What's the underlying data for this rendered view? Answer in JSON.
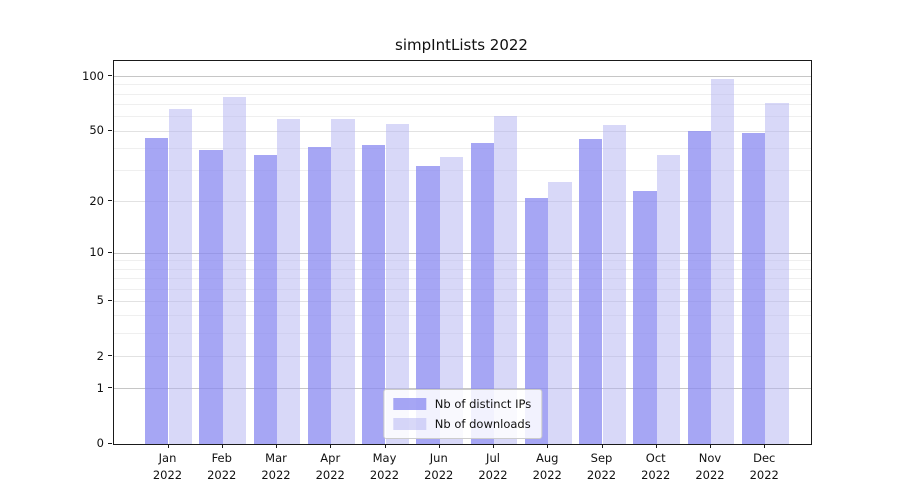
{
  "title": "simpIntLists 2022",
  "chart_data": {
    "type": "bar",
    "title": "simpIntLists 2022",
    "categories": [
      "Jan",
      "Feb",
      "Mar",
      "Apr",
      "May",
      "Jun",
      "Jul",
      "Aug",
      "Sep",
      "Oct",
      "Nov",
      "Dec"
    ],
    "category_year": "2022",
    "series": [
      {
        "name": "Nb of distinct IPs",
        "color": "rgba(136,136,240,0.75)",
        "values": [
          46,
          39,
          37,
          41,
          42,
          32,
          43,
          21,
          45,
          23,
          50,
          49
        ]
      },
      {
        "name": "Nb of downloads",
        "color": "rgba(177,177,242,0.5)",
        "values": [
          66,
          77,
          58,
          58,
          55,
          36,
          61,
          26,
          54,
          37,
          97,
          72
        ]
      }
    ],
    "yscale": "log1p",
    "ylim": [
      0,
      122
    ],
    "ytick_values": [
      0,
      1,
      2,
      5,
      10,
      20,
      50,
      100
    ],
    "ytick_labels": [
      "0",
      "1",
      "2",
      "5",
      "10",
      "20",
      "50",
      "100"
    ],
    "gridlines_major": [
      1,
      10,
      100
    ],
    "gridlines_mid": [
      2,
      5,
      20,
      50
    ],
    "gridlines_minor": [
      3,
      4,
      6,
      7,
      8,
      9,
      30,
      40,
      60,
      70,
      80,
      90
    ],
    "legend_position": "lower center",
    "grid": true
  }
}
